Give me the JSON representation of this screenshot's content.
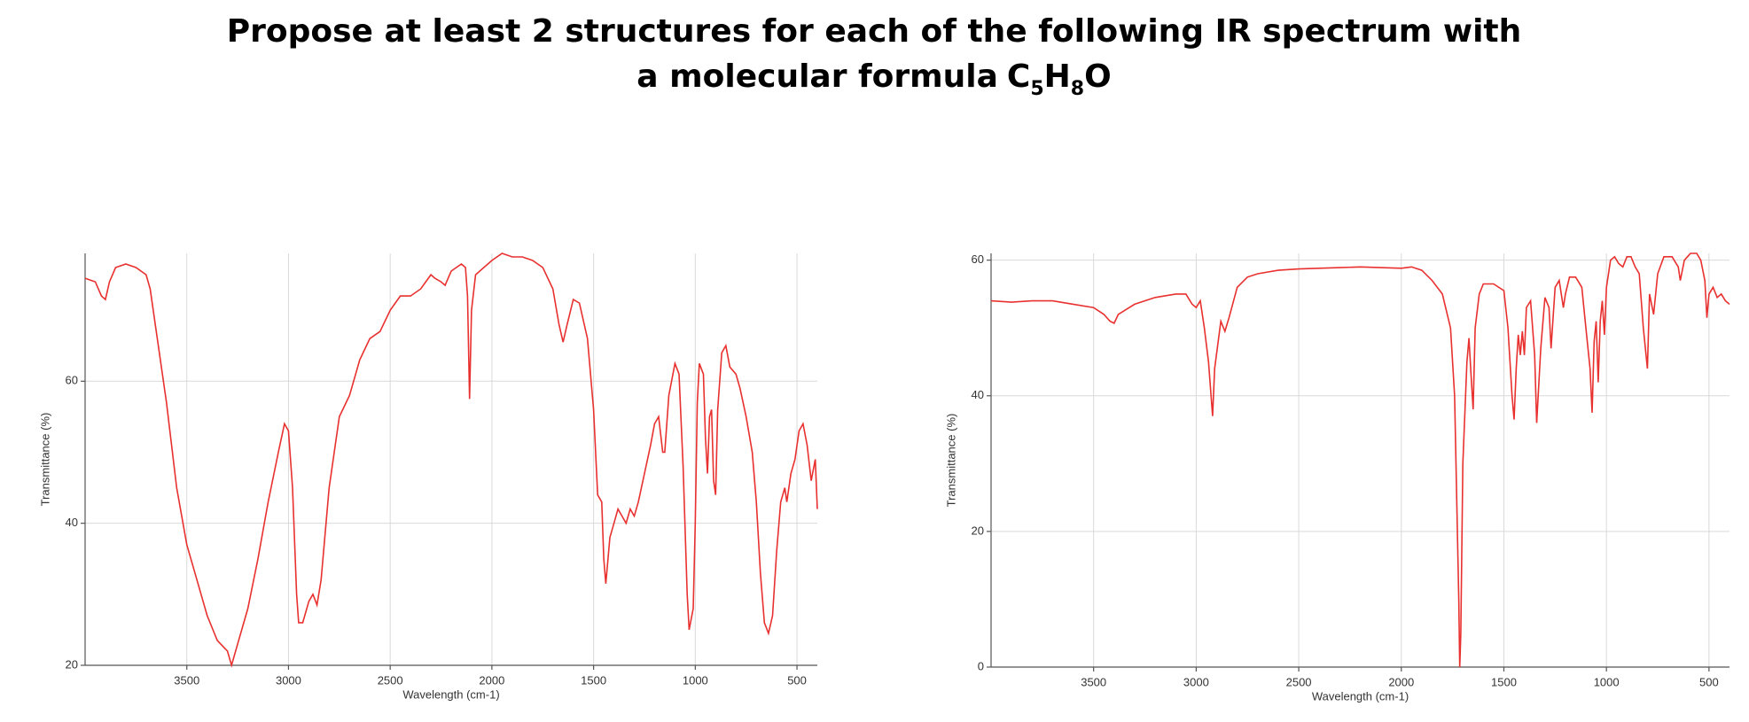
{
  "title": {
    "line1": "Propose at least 2 structures for each of the following IR spectrum with",
    "line2": "a molecular formula",
    "formula": [
      {
        "text": "C"
      },
      {
        "text": "5",
        "sub": true
      },
      {
        "text": "H"
      },
      {
        "text": "8",
        "sub": true
      },
      {
        "text": "O"
      }
    ]
  },
  "chart_data": [
    {
      "type": "line",
      "xlabel": "Wavelength (cm-1)",
      "ylabel": "Transmittance (%)",
      "xlim": [
        4000,
        400
      ],
      "ylim": [
        20,
        78
      ],
      "xticks": [
        3500,
        3000,
        2500,
        2000,
        1500,
        1000,
        500
      ],
      "yticks": [
        20,
        40,
        60
      ],
      "grid": true,
      "series": [
        {
          "color": "#e8312f",
          "x": [
            4000,
            3950,
            3920,
            3900,
            3880,
            3850,
            3800,
            3750,
            3700,
            3680,
            3650,
            3600,
            3550,
            3500,
            3450,
            3400,
            3350,
            3300,
            3280,
            3250,
            3200,
            3150,
            3100,
            3050,
            3020,
            3000,
            2980,
            2960,
            2950,
            2930,
            2900,
            2880,
            2860,
            2840,
            2800,
            2750,
            2700,
            2650,
            2600,
            2550,
            2500,
            2450,
            2400,
            2350,
            2300,
            2280,
            2250,
            2230,
            2200,
            2150,
            2130,
            2120,
            2110,
            2100,
            2080,
            2000,
            1950,
            1900,
            1850,
            1800,
            1750,
            1700,
            1670,
            1650,
            1630,
            1600,
            1570,
            1530,
            1500,
            1480,
            1460,
            1450,
            1440,
            1420,
            1400,
            1380,
            1360,
            1340,
            1320,
            1300,
            1280,
            1250,
            1220,
            1200,
            1180,
            1160,
            1150,
            1130,
            1100,
            1080,
            1060,
            1040,
            1030,
            1010,
            1000,
            990,
            980,
            960,
            950,
            940,
            930,
            920,
            910,
            900,
            890,
            870,
            850,
            830,
            800,
            780,
            750,
            720,
            700,
            680,
            660,
            640,
            620,
            600,
            580,
            560,
            550,
            530,
            510,
            490,
            470,
            450,
            430,
            410,
            400
          ],
          "values": [
            74.5,
            74,
            72,
            71.5,
            74,
            76,
            76.5,
            76,
            75,
            73,
            67,
            57,
            45,
            37,
            32,
            27,
            23.5,
            22,
            20,
            23,
            28,
            35,
            43,
            50,
            54,
            53,
            45,
            30,
            26,
            26,
            29,
            30,
            28.5,
            32,
            45,
            55,
            58,
            63,
            66,
            67,
            70,
            72,
            72,
            73,
            75,
            74.5,
            74,
            73.5,
            75.5,
            76.5,
            76,
            72,
            57.5,
            70,
            75,
            77,
            78,
            77.5,
            77.5,
            77,
            76,
            73,
            68,
            65.5,
            68,
            71.5,
            71,
            66,
            56,
            44,
            43,
            35,
            31.5,
            38,
            40,
            42,
            41,
            40,
            42,
            41,
            43,
            47,
            51,
            54,
            55,
            50,
            50,
            58,
            62.5,
            61,
            48,
            30,
            25,
            28,
            40,
            57,
            62.5,
            61,
            52,
            47,
            55,
            56,
            46,
            44,
            56,
            64,
            65,
            62,
            61,
            59,
            55,
            50,
            43,
            33,
            26,
            24.5,
            27,
            36,
            43,
            45,
            43,
            47,
            49,
            53,
            54,
            51,
            46,
            49,
            42
          ]
        }
      ]
    },
    {
      "type": "line",
      "xlabel": "Wavelength (cm-1)",
      "ylabel": "Transmittance (%)",
      "xlim": [
        4000,
        400
      ],
      "ylim": [
        0,
        61
      ],
      "xticks": [
        3500,
        3000,
        2500,
        2000,
        1500,
        1000,
        500
      ],
      "yticks": [
        0,
        20,
        40,
        60
      ],
      "grid": true,
      "series": [
        {
          "color": "#e8312f",
          "x": [
            4000,
            3900,
            3800,
            3750,
            3700,
            3600,
            3500,
            3450,
            3420,
            3400,
            3380,
            3300,
            3200,
            3100,
            3050,
            3020,
            3000,
            2980,
            2960,
            2940,
            2920,
            2910,
            2880,
            2860,
            2840,
            2800,
            2750,
            2700,
            2600,
            2500,
            2400,
            2300,
            2200,
            2100,
            2000,
            1950,
            1900,
            1850,
            1800,
            1760,
            1740,
            1720,
            1715,
            1710,
            1700,
            1680,
            1670,
            1660,
            1650,
            1640,
            1620,
            1600,
            1550,
            1500,
            1480,
            1460,
            1450,
            1440,
            1430,
            1420,
            1410,
            1400,
            1390,
            1370,
            1350,
            1340,
            1320,
            1300,
            1280,
            1270,
            1250,
            1230,
            1210,
            1200,
            1180,
            1150,
            1120,
            1100,
            1080,
            1070,
            1060,
            1050,
            1040,
            1030,
            1020,
            1010,
            1000,
            980,
            960,
            940,
            920,
            900,
            880,
            860,
            840,
            820,
            800,
            790,
            770,
            750,
            720,
            680,
            650,
            640,
            620,
            590,
            560,
            540,
            520,
            510,
            500,
            480,
            460,
            440,
            420,
            400
          ],
          "values": [
            54,
            53.8,
            54,
            54,
            54,
            53.5,
            53,
            52,
            51,
            50.7,
            52,
            53.5,
            54.5,
            55,
            55,
            53.5,
            53,
            54,
            50,
            45,
            37,
            44,
            51,
            49.5,
            51.5,
            56,
            57.5,
            58,
            58.5,
            58.7,
            58.8,
            58.9,
            59,
            58.9,
            58.8,
            59,
            58.5,
            57,
            55,
            50,
            40,
            10,
            0,
            5,
            30,
            45,
            48.5,
            43,
            38,
            50,
            55,
            56.5,
            56.5,
            55.5,
            50,
            40,
            36.5,
            44,
            49,
            46,
            49.5,
            46,
            53,
            54,
            46,
            36,
            47,
            54.5,
            53,
            47,
            56,
            57,
            53,
            55,
            57.5,
            57.5,
            56,
            50,
            44,
            37.5,
            48,
            51,
            42,
            51,
            54,
            49,
            56,
            60,
            60.5,
            59.5,
            59,
            60.5,
            60.5,
            59,
            58,
            50,
            44,
            55,
            52,
            58,
            60.5,
            60.5,
            59,
            57,
            60,
            61,
            61,
            60,
            57,
            51.5,
            55,
            56,
            54.5,
            55,
            54,
            53.5
          ]
        }
      ]
    }
  ]
}
